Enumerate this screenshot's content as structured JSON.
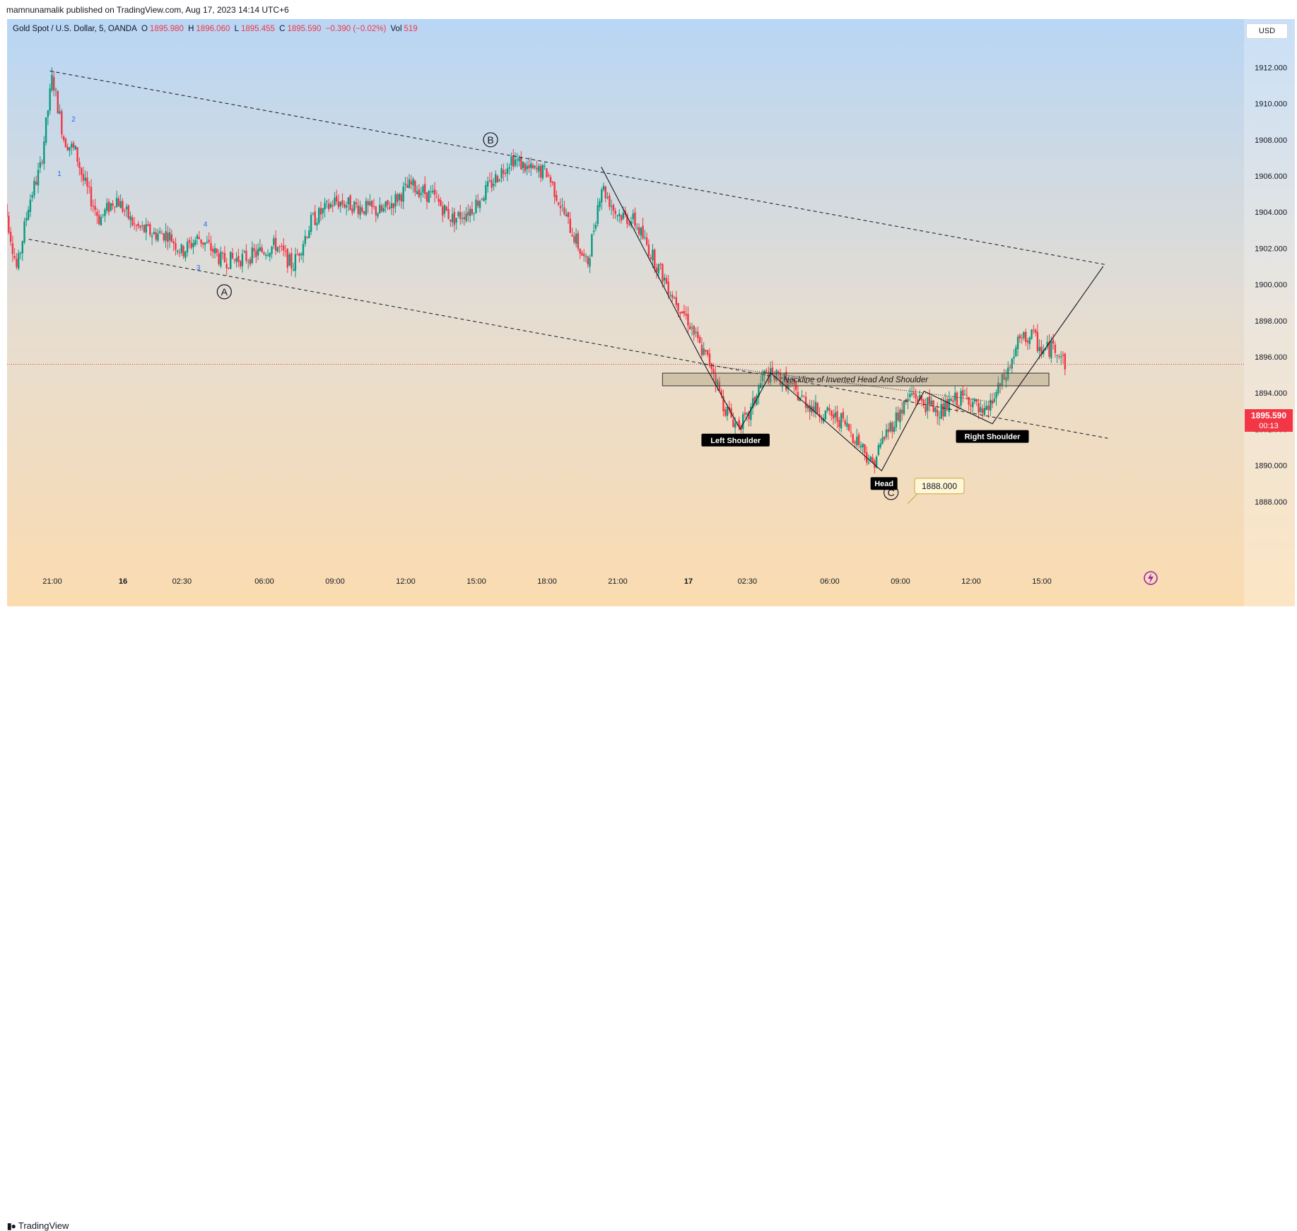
{
  "header": {
    "publisher": "mamnunamalik published on TradingView.com, Aug 17, 2023 14:14 UTC+6"
  },
  "legend": {
    "symbol": "Gold Spot / U.S. Dollar, 5, OANDA",
    "o_label": "O",
    "o": "1895.980",
    "h_label": "H",
    "h": "1896.060",
    "l_label": "L",
    "l": "1895.455",
    "c_label": "C",
    "c": "1895.590",
    "change": "−0.390 (−0.02%)",
    "vol_label": "Vol",
    "vol": "519"
  },
  "currency": "USD",
  "price_tag": {
    "price": "1895.590",
    "countdown": "00:13"
  },
  "footer": {
    "logo": "TradingView"
  },
  "colors": {
    "up": "#089981",
    "down": "#f23645",
    "line": "#131722",
    "bg_top": "#b8d6f5",
    "bg_bottom": "#fbdcb0",
    "annotation": "#131722"
  },
  "icons": {
    "logo": "tradingview-logo-icon",
    "lightning": "lightning-icon"
  },
  "chart_data": {
    "type": "candlestick",
    "symbol": "XAUUSD",
    "interval": "5",
    "ylim": [
      1887.0,
      1914.0
    ],
    "y_ticks": [
      "1912.000",
      "1910.000",
      "1908.000",
      "1906.000",
      "1904.000",
      "1902.000",
      "1900.000",
      "1898.000",
      "1896.000",
      "1894.000",
      "1892.000",
      "1890.000",
      "1888.000"
    ],
    "x_ticks": [
      "21:00",
      "16",
      "02:30",
      "06:00",
      "09:00",
      "12:00",
      "15:00",
      "18:00",
      "21:00",
      "17",
      "02:30",
      "06:00",
      "09:00",
      "12:00",
      "15:00"
    ],
    "x_tick_hours": [
      0,
      3,
      5.5,
      9,
      12,
      15,
      18,
      21,
      24,
      27,
      29.5,
      33,
      36,
      39,
      42
    ],
    "x_domain_hours": [
      -2.13,
      46.5
    ],
    "last_price": 1895.59,
    "price_path": [
      {
        "t": -2.1,
        "p": 1905.0
      },
      {
        "t": -1.5,
        "p": 1900.8
      },
      {
        "t": -1.0,
        "p": 1904.5
      },
      {
        "t": -0.5,
        "p": 1906.5
      },
      {
        "t": 0.0,
        "p": 1911.5
      },
      {
        "t": 0.5,
        "p": 1908.0
      },
      {
        "t": 1.0,
        "p": 1907.3
      },
      {
        "t": 1.3,
        "p": 1905.8
      },
      {
        "t": 2.0,
        "p": 1903.6
      },
      {
        "t": 2.7,
        "p": 1904.8
      },
      {
        "t": 3.5,
        "p": 1903.2
      },
      {
        "t": 4.3,
        "p": 1902.8
      },
      {
        "t": 4.9,
        "p": 1902.8
      },
      {
        "t": 5.5,
        "p": 1901.8
      },
      {
        "t": 6.2,
        "p": 1902.6
      },
      {
        "t": 6.8,
        "p": 1901.9
      },
      {
        "t": 7.2,
        "p": 1901.3
      },
      {
        "t": 8.3,
        "p": 1901.5
      },
      {
        "t": 9.5,
        "p": 1902.2
      },
      {
        "t": 10.2,
        "p": 1901.0
      },
      {
        "t": 11.0,
        "p": 1903.5
      },
      {
        "t": 12.0,
        "p": 1904.6
      },
      {
        "t": 13.0,
        "p": 1904.3
      },
      {
        "t": 14.0,
        "p": 1904.0
      },
      {
        "t": 15.2,
        "p": 1905.5
      },
      {
        "t": 16.2,
        "p": 1904.8
      },
      {
        "t": 17.0,
        "p": 1903.6
      },
      {
        "t": 17.8,
        "p": 1904.2
      },
      {
        "t": 18.6,
        "p": 1905.5
      },
      {
        "t": 19.5,
        "p": 1907.0
      },
      {
        "t": 20.3,
        "p": 1906.3
      },
      {
        "t": 21.0,
        "p": 1906.2
      },
      {
        "t": 21.7,
        "p": 1904.0
      },
      {
        "t": 22.2,
        "p": 1902.5
      },
      {
        "t": 22.7,
        "p": 1901.0
      },
      {
        "t": 23.3,
        "p": 1905.5
      },
      {
        "t": 23.9,
        "p": 1904.0
      },
      {
        "t": 24.7,
        "p": 1903.5
      },
      {
        "t": 25.5,
        "p": 1901.5
      },
      {
        "t": 26.3,
        "p": 1899.5
      },
      {
        "t": 27.0,
        "p": 1898.0
      },
      {
        "t": 27.5,
        "p": 1896.5
      },
      {
        "t": 28.0,
        "p": 1895.5
      },
      {
        "t": 28.5,
        "p": 1893.3
      },
      {
        "t": 29.0,
        "p": 1892.3
      },
      {
        "t": 29.5,
        "p": 1892.5
      },
      {
        "t": 30.2,
        "p": 1895.0
      },
      {
        "t": 31.0,
        "p": 1894.8
      },
      {
        "t": 31.7,
        "p": 1893.8
      },
      {
        "t": 32.5,
        "p": 1893.0
      },
      {
        "t": 33.5,
        "p": 1892.5
      },
      {
        "t": 34.4,
        "p": 1891.0
      },
      {
        "t": 34.8,
        "p": 1890.0
      },
      {
        "t": 35.3,
        "p": 1891.6
      },
      {
        "t": 36.0,
        "p": 1893.0
      },
      {
        "t": 36.5,
        "p": 1894.0
      },
      {
        "t": 37.0,
        "p": 1893.4
      },
      {
        "t": 37.8,
        "p": 1893.0
      },
      {
        "t": 38.3,
        "p": 1893.6
      },
      {
        "t": 38.9,
        "p": 1893.8
      },
      {
        "t": 39.5,
        "p": 1892.6
      },
      {
        "t": 40.0,
        "p": 1893.8
      },
      {
        "t": 40.6,
        "p": 1895.3
      },
      {
        "t": 41.0,
        "p": 1896.8
      },
      {
        "t": 41.6,
        "p": 1897.2
      },
      {
        "t": 42.0,
        "p": 1896.3
      },
      {
        "t": 42.6,
        "p": 1896.6
      },
      {
        "t": 43.0,
        "p": 1895.6
      }
    ],
    "annotations": {
      "wave_labels": [
        "1",
        "2",
        "3",
        "4"
      ],
      "circled_labels": [
        "A",
        "B",
        "C"
      ],
      "pattern_labels": [
        "Left Shoulder",
        "Head",
        "Right Shoulder"
      ],
      "neckline_text": "Neckline of Inverted Head And Shoulder",
      "head_price_callout": "1888.000"
    },
    "wave_points": [
      {
        "label": "1",
        "t": 0.3,
        "p": 1906.0
      },
      {
        "label": "2",
        "t": 0.9,
        "p": 1909.0
      },
      {
        "label": "3",
        "t": 6.2,
        "p": 1900.8
      },
      {
        "label": "4",
        "t": 6.5,
        "p": 1903.2
      }
    ],
    "circled_points": [
      {
        "label": "A",
        "t": 7.3,
        "p": 1899.6
      },
      {
        "label": "B",
        "t": 18.6,
        "p": 1908.0
      },
      {
        "label": "C",
        "t": 35.6,
        "p": 1888.5
      }
    ],
    "pattern_label_points": [
      {
        "label": "Left Shoulder",
        "t": 29.0,
        "p": 1891.4
      },
      {
        "label": "Head",
        "t": 35.3,
        "p": 1889.0
      },
      {
        "label": "Right Shoulder",
        "t": 39.9,
        "p": 1891.6
      }
    ],
    "head_callout_point": {
      "t": 36.6,
      "p": 1888.9
    },
    "trend_lines": [
      {
        "t1": -0.1,
        "p1": 1911.8,
        "t2": 44.7,
        "p2": 1901.1
      },
      {
        "t1": -1.0,
        "p1": 1902.5,
        "t2": 44.8,
        "p2": 1891.5
      }
    ],
    "neckline_band": {
      "t1": 25.9,
      "t2": 42.3,
      "p_top": 1895.1,
      "p_bottom": 1894.4
    },
    "neckline_dotted": {
      "t1": 27.5,
      "p1": 1895.6,
      "t2": 40.0,
      "p2": 1893.5
    },
    "pattern_path": [
      {
        "t": 23.3,
        "p": 1906.5
      },
      {
        "t": 27.5,
        "p": 1896.0
      },
      {
        "t": 29.2,
        "p": 1892.0
      },
      {
        "t": 30.5,
        "p": 1895.1
      },
      {
        "t": 35.2,
        "p": 1889.7
      },
      {
        "t": 37.0,
        "p": 1894.1
      },
      {
        "t": 39.9,
        "p": 1892.3
      },
      {
        "t": 44.6,
        "p": 1901.0
      }
    ]
  }
}
